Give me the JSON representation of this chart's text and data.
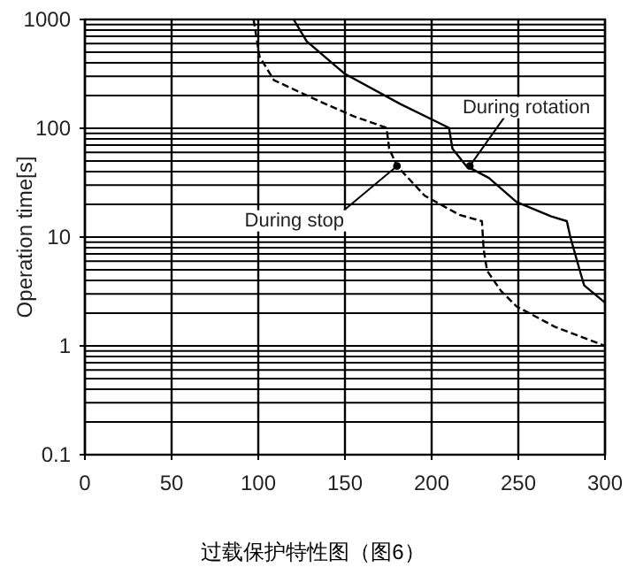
{
  "chart_data": {
    "type": "line",
    "title": "过载保护特性图（图6）",
    "ylabel": "Operation time[s]",
    "log": "y",
    "grid": true,
    "marker": "none",
    "xlim": [
      0,
      300
    ],
    "xticks": [
      0,
      50,
      100,
      150,
      200,
      250,
      300
    ],
    "ylim": [
      0.1,
      1000
    ],
    "yticks": [
      0.1,
      1,
      10,
      100,
      1000
    ],
    "series": [
      {
        "color": "#000000",
        "line_style": "solid",
        "x": [
          120.4,
          127.9,
          150,
          182,
          210,
          212,
          220,
          233,
          249,
          269,
          278,
          280,
          286,
          288,
          300
        ],
        "values": [
          1000,
          630,
          316,
          167,
          101,
          65,
          45,
          35,
          21,
          15.5,
          14,
          10,
          4.6,
          3.6,
          2.5
        ]
      },
      {
        "color": "#000000",
        "line_style": "dashed",
        "x": [
          97.3,
          100.7,
          109,
          135,
          155,
          174,
          175.5,
          180,
          196,
          216,
          229,
          230,
          232,
          240,
          249,
          271,
          300
        ],
        "values": [
          1000,
          457,
          277,
          178,
          129,
          101,
          65,
          45,
          24,
          16,
          14,
          7.7,
          4.9,
          3.2,
          2.3,
          1.5,
          1.0
        ]
      }
    ],
    "annotations": [
      {
        "text": "During rotation",
        "x": 222,
        "y": 45
      },
      {
        "text": "During stop",
        "x": 180,
        "y": 45
      }
    ]
  }
}
